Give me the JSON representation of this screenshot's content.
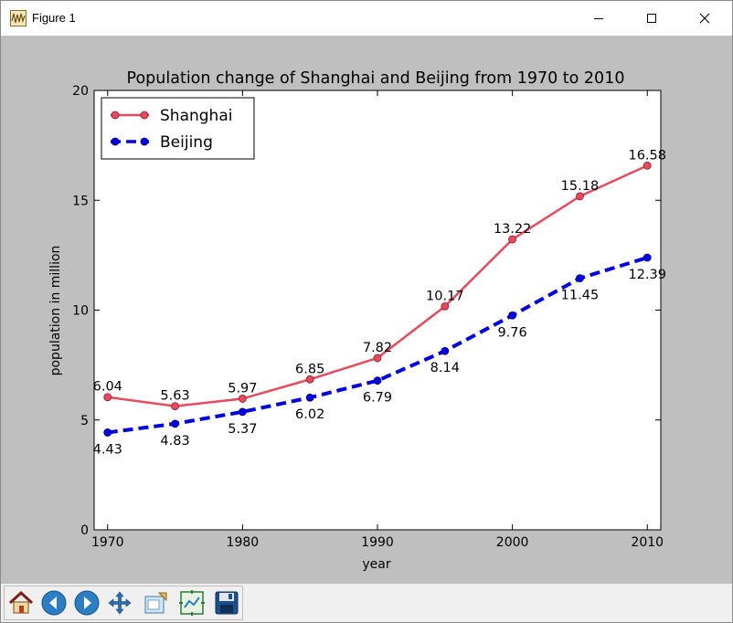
{
  "window": {
    "title": "Figure 1"
  },
  "toolbar": {
    "buttons": [
      {
        "name": "home-button",
        "icon": "home-icon"
      },
      {
        "name": "back-button",
        "icon": "arrow-left-icon"
      },
      {
        "name": "forward-button",
        "icon": "arrow-right-icon"
      },
      {
        "name": "pan-button",
        "icon": "move-icon"
      },
      {
        "name": "zoom-button",
        "icon": "zoom-rect-icon"
      },
      {
        "name": "subplots-button",
        "icon": "subplots-icon"
      },
      {
        "name": "save-button",
        "icon": "save-icon"
      }
    ]
  },
  "colors": {
    "background": "#bfbfbf",
    "shanghai": "#e8495d",
    "beijing": "#0000e0"
  },
  "chart_data": {
    "type": "line",
    "title": "Population change of Shanghai and Beijing from 1970 to 2010",
    "xlabel": "year",
    "ylabel": "population in million",
    "x": [
      1970,
      1975,
      1980,
      1985,
      1990,
      1995,
      2000,
      2005,
      2010
    ],
    "xlim": [
      1969,
      2011
    ],
    "ylim": [
      0,
      20
    ],
    "xticks": [
      "1970",
      "1980",
      "1990",
      "2000",
      "2010"
    ],
    "yticks": [
      "0",
      "5",
      "10",
      "15",
      "20"
    ],
    "legend_position": "top-left",
    "series": [
      {
        "name": "Shanghai",
        "values": [
          6.04,
          5.63,
          5.97,
          6.85,
          7.82,
          10.17,
          13.22,
          15.18,
          16.58
        ],
        "labels": [
          "6.04",
          "5.63",
          "5.97",
          "6.85",
          "7.82",
          "10.17",
          "13.22",
          "15.18",
          "16.58"
        ],
        "style": "solid",
        "color": "#e8495d",
        "label_position": "above"
      },
      {
        "name": "Beijing",
        "values": [
          4.43,
          4.83,
          5.37,
          6.02,
          6.79,
          8.14,
          9.76,
          11.45,
          12.39
        ],
        "labels": [
          "4.43",
          "4.83",
          "5.37",
          "6.02",
          "6.79",
          "8.14",
          "9.76",
          "11.45",
          "12.39"
        ],
        "style": "dashed",
        "color": "#0000e0",
        "label_position": "below"
      }
    ]
  }
}
